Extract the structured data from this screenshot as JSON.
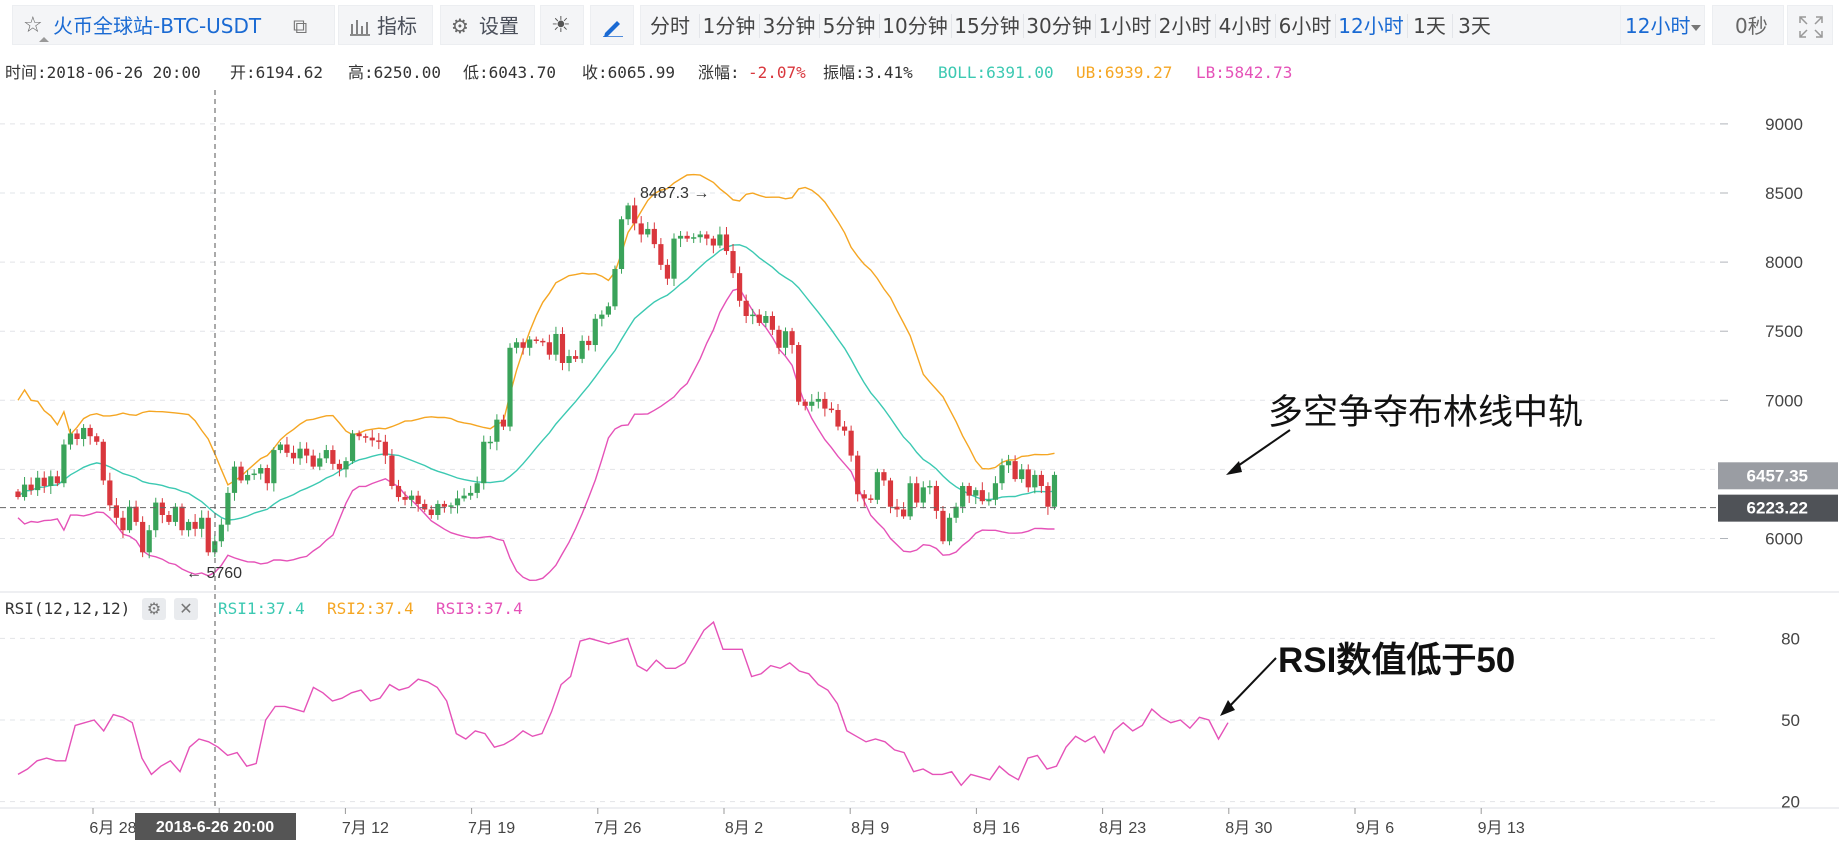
{
  "toolbar": {
    "symbol": "火币全球站-BTC-USDT",
    "indicator_label": "指标",
    "settings_label": "设置",
    "intervals": [
      "分时",
      "1分钟",
      "3分钟",
      "5分钟",
      "10分钟",
      "15分钟",
      "30分钟",
      "1小时",
      "2小时",
      "4小时",
      "6小时",
      "12小时",
      "1天",
      "3天"
    ],
    "active_interval": "12小时",
    "selected_interval": "12小时",
    "countdown": "0秒",
    "colors": {
      "accent": "#1a6ad3"
    }
  },
  "info_bar": {
    "time": "时间:2018-06-26 20:00",
    "open": "开:6194.62",
    "high": "高:6250.00",
    "low": "低:6043.70",
    "close": "收:6065.99",
    "change": "涨幅:",
    "change_value": "-2.07%",
    "amplitude": "振幅:3.41%",
    "boll": "BOLL:6391.00",
    "ub": "UB:6939.27",
    "lb": "LB:5842.73"
  },
  "rsi_legend": {
    "name": "RSI(12,12,12)",
    "rsi1": "RSI1:37.4",
    "rsi2": "RSI2:37.4",
    "rsi3": "RSI3:37.4"
  },
  "annotations": {
    "boll_note": "多空争夺布林线中轨",
    "rsi_note": "RSI数值低于50",
    "high_marker": "8487.3",
    "low_marker": "5760"
  },
  "price_labels": {
    "current": "6457.35",
    "crosshair": "6223.22"
  },
  "crosshair_time": "2018-6-26 20:00",
  "chart_data": [
    {
      "type": "candlestick",
      "ylim": [
        5600,
        9000
      ],
      "yticks": [
        6000,
        6500,
        7000,
        7500,
        8000,
        8500,
        9000
      ],
      "ytick_labels": [
        "6000",
        "6500",
        "7000",
        "7500",
        "8000",
        "8500",
        "9000"
      ],
      "x_ticks": [
        "6月 28",
        "7月 5",
        "7月 12",
        "7月 19",
        "7月 26",
        "8月 2",
        "8月 9",
        "8月 16",
        "8月 23",
        "8月 30",
        "9月 6",
        "9月 13"
      ],
      "x_tick_dates": [
        "06-28",
        "07-05",
        "07-12",
        "07-19",
        "07-26",
        "08-02",
        "08-09",
        "08-16",
        "08-23",
        "08-30",
        "09-06",
        "09-13"
      ],
      "boll_colors": {
        "mid": "#3cc9b2",
        "upper": "#f5a623",
        "lower": "#e552b8"
      },
      "candle_colors": {
        "up": "#3aa35a",
        "down": "#d9373d"
      },
      "closes": [
        6300,
        6390,
        6350,
        6440,
        6380,
        6450,
        6400,
        6680,
        6760,
        6720,
        6800,
        6740,
        6700,
        6420,
        6240,
        6150,
        6060,
        6230,
        6120,
        5900,
        6060,
        6260,
        6170,
        6120,
        6230,
        6060,
        6120,
        6070,
        6150,
        5900,
        5980,
        6100,
        6330,
        6520,
        6420,
        6460,
        6470,
        6510,
        6400,
        6640,
        6680,
        6620,
        6580,
        6650,
        6600,
        6520,
        6580,
        6640,
        6540,
        6500,
        6560,
        6760,
        6740,
        6730,
        6710,
        6700,
        6600,
        6380,
        6300,
        6280,
        6310,
        6250,
        6210,
        6170,
        6250,
        6230,
        6240,
        6290,
        6310,
        6330,
        6400,
        6700,
        6700,
        6860,
        6810,
        7380,
        7420,
        7380,
        7440,
        7430,
        7420,
        7330,
        7480,
        7270,
        7320,
        7300,
        7430,
        7400,
        7590,
        7620,
        7680,
        7950,
        8310,
        8410,
        8280,
        8200,
        8240,
        8130,
        7980,
        7880,
        8170,
        8190,
        8170,
        8180,
        8200,
        8170,
        8120,
        8200,
        8080,
        7920,
        7720,
        7610,
        7620,
        7560,
        7610,
        7510,
        7380,
        7500,
        7400,
        6990,
        6960,
        6990,
        7010,
        6940,
        6930,
        6810,
        6780,
        6600,
        6320,
        6290,
        6280,
        6480,
        6420,
        6230,
        6210,
        6160,
        6400,
        6260,
        6370,
        6380,
        6200,
        5980,
        6150,
        6230,
        6380,
        6310,
        6350,
        6270,
        6280,
        6400,
        6530,
        6560,
        6430,
        6500,
        6370,
        6460,
        6380,
        6230,
        6460
      ],
      "boll_mid_fragment_start": 6700,
      "rsi": {
        "name": "RSI(12,12,12)",
        "ylim": [
          16,
          90
        ],
        "yticks": [
          20,
          50,
          80
        ],
        "values": [
          30,
          32,
          35,
          36,
          35,
          35,
          48,
          49,
          50,
          46,
          52,
          51,
          49,
          36,
          30,
          33,
          35,
          31,
          40,
          43,
          42,
          40,
          37,
          38,
          33,
          34,
          50,
          55,
          55,
          54,
          53,
          62,
          60,
          57,
          58,
          60,
          61,
          57,
          58,
          63,
          61,
          62,
          65,
          64,
          62,
          57,
          45,
          43,
          46,
          45,
          40,
          41,
          43,
          46,
          44,
          45,
          53,
          63,
          66,
          79,
          80,
          79,
          78,
          79,
          80,
          70,
          68,
          72,
          69,
          69,
          71,
          77,
          83,
          86,
          76,
          76,
          76,
          66,
          67,
          70,
          69,
          71,
          68,
          67,
          63,
          61,
          56,
          46,
          44,
          42,
          43,
          42,
          39,
          38,
          31,
          32,
          30,
          30,
          31,
          26,
          30,
          29,
          28,
          33,
          30,
          28,
          36,
          37,
          32,
          33,
          40,
          44,
          42,
          44,
          38,
          46,
          49,
          46,
          48,
          54,
          51,
          49,
          50,
          47,
          51,
          50,
          43,
          49
        ]
      }
    }
  ]
}
